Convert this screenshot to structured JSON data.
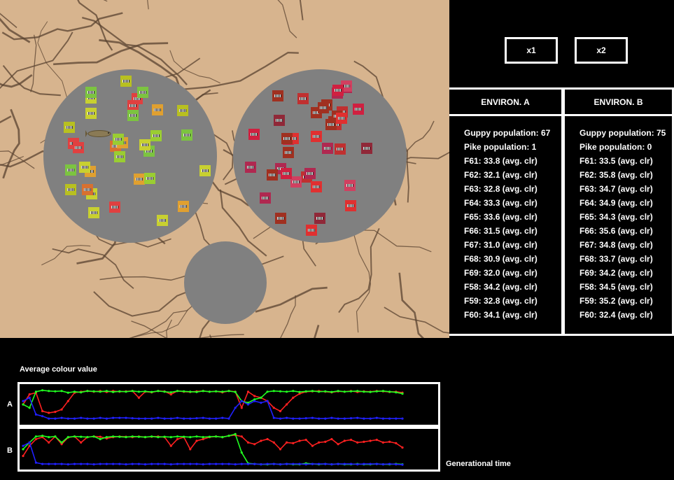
{
  "speed_buttons": [
    "x1",
    "x2"
  ],
  "environments": [
    {
      "header": "ENVIRON. A",
      "guppy_population": "Guppy population: 67",
      "pike_population": "Pike population: 1",
      "fish_stats": [
        "F61: 33.8 (avg. clr)",
        "F62: 32.1 (avg. clr)",
        "F63: 32.8 (avg. clr)",
        "F64: 33.3 (avg. clr)",
        "F65: 33.6 (avg. clr)",
        "F66: 31.5 (avg. clr)",
        "F67: 31.0 (avg. clr)",
        "F68: 30.9 (avg. clr)",
        "F69: 32.0 (avg. clr)",
        "F58: 34.2 (avg. clr)",
        "F59: 32.8 (avg. clr)",
        "F60: 34.1 (avg. clr)"
      ]
    },
    {
      "header": "ENVIRON. B",
      "guppy_population": "Guppy population: 75",
      "pike_population": "Pike population: 0",
      "fish_stats": [
        "F61: 33.5 (avg. clr)",
        "F62: 35.8 (avg. clr)",
        "F63: 34.7 (avg. clr)",
        "F64: 34.9 (avg. clr)",
        "F65: 34.3 (avg. clr)",
        "F66: 35.6 (avg. clr)",
        "F67: 34.8 (avg. clr)",
        "F68: 33.7 (avg. clr)",
        "F69: 34.2 (avg. clr)",
        "F58: 34.5 (avg. clr)",
        "F59: 35.2 (avg. clr)",
        "F60: 32.4 (avg. clr)"
      ]
    }
  ],
  "graph": {
    "title": "Average colour value",
    "xlabel": "Generational time",
    "plot_labels": [
      "A",
      "B"
    ]
  },
  "colors": {
    "background": "#000000",
    "pool": "#808080",
    "sand": "#d7b48e",
    "crack": "#5a4330",
    "red_series": "#ff2020",
    "green_series": "#20ff20",
    "blue_series": "#2020ff"
  },
  "chart_data": [
    {
      "type": "line",
      "panel": "A",
      "title": "Average colour value",
      "xlabel": "Generational time",
      "x_count": 60,
      "series": [
        {
          "color": "red",
          "values": [
            0.5,
            0.8,
            0.85,
            0.3,
            0.25,
            0.28,
            0.35,
            0.6,
            0.85,
            0.88,
            0.9,
            0.88,
            0.9,
            0.87,
            0.9,
            0.88,
            0.89,
            0.9,
            0.7,
            0.88,
            0.86,
            0.9,
            0.89,
            0.8,
            0.9,
            0.88,
            0.87,
            0.89,
            0.9,
            0.88,
            0.89,
            0.86,
            0.9,
            0.88,
            0.4,
            0.88,
            0.75,
            0.7,
            0.6,
            0.4,
            0.3,
            0.5,
            0.7,
            0.82,
            0.88,
            0.89,
            0.9,
            0.88,
            0.86,
            0.89,
            0.88,
            0.9,
            0.87,
            0.89,
            0.88,
            0.9,
            0.89,
            0.87,
            0.88,
            0.85
          ]
        },
        {
          "color": "green",
          "values": [
            0.5,
            0.4,
            0.88,
            0.92,
            0.9,
            0.89,
            0.9,
            0.85,
            0.88,
            0.86,
            0.9,
            0.89,
            0.88,
            0.9,
            0.87,
            0.89,
            0.88,
            0.9,
            0.88,
            0.89,
            0.87,
            0.9,
            0.88,
            0.86,
            0.9,
            0.89,
            0.88,
            0.87,
            0.9,
            0.88,
            0.89,
            0.88,
            0.9,
            0.87,
            0.6,
            0.55,
            0.65,
            0.7,
            0.88,
            0.9,
            0.89,
            0.88,
            0.9,
            0.87,
            0.89,
            0.9,
            0.88,
            0.89,
            0.87,
            0.9,
            0.88,
            0.89,
            0.9,
            0.88,
            0.87,
            0.89,
            0.9,
            0.88,
            0.86,
            0.82
          ]
        },
        {
          "color": "blue",
          "values": [
            0.6,
            0.7,
            0.2,
            0.15,
            0.08,
            0.08,
            0.1,
            0.08,
            0.08,
            0.1,
            0.08,
            0.08,
            0.1,
            0.08,
            0.1,
            0.1,
            0.1,
            0.09,
            0.08,
            0.08,
            0.08,
            0.1,
            0.08,
            0.08,
            0.1,
            0.08,
            0.08,
            0.09,
            0.1,
            0.08,
            0.08,
            0.1,
            0.08,
            0.4,
            0.6,
            0.5,
            0.6,
            0.55,
            0.6,
            0.1,
            0.08,
            0.1,
            0.08,
            0.08,
            0.09,
            0.1,
            0.08,
            0.08,
            0.1,
            0.08,
            0.08,
            0.09,
            0.1,
            0.08,
            0.08,
            0.1,
            0.08,
            0.08,
            0.08,
            0.08
          ]
        }
      ]
    },
    {
      "type": "line",
      "panel": "B",
      "xlabel": "Generational time",
      "x_count": 60,
      "series": [
        {
          "color": "red",
          "values": [
            0.3,
            0.6,
            0.8,
            0.86,
            0.7,
            0.88,
            0.65,
            0.85,
            0.88,
            0.7,
            0.86,
            0.88,
            0.87,
            0.82,
            0.86,
            0.88,
            0.87,
            0.86,
            0.88,
            0.86,
            0.87,
            0.88,
            0.86,
            0.6,
            0.8,
            0.86,
            0.5,
            0.75,
            0.8,
            0.86,
            0.88,
            0.86,
            0.9,
            0.92,
            0.88,
            0.7,
            0.65,
            0.75,
            0.8,
            0.7,
            0.5,
            0.7,
            0.68,
            0.75,
            0.78,
            0.6,
            0.7,
            0.72,
            0.8,
            0.65,
            0.75,
            0.78,
            0.7,
            0.72,
            0.75,
            0.78,
            0.7,
            0.72,
            0.68,
            0.55
          ]
        },
        {
          "color": "green",
          "values": [
            0.5,
            0.7,
            0.88,
            0.9,
            0.86,
            0.88,
            0.7,
            0.86,
            0.88,
            0.87,
            0.86,
            0.88,
            0.8,
            0.86,
            0.88,
            0.87,
            0.86,
            0.88,
            0.87,
            0.86,
            0.88,
            0.86,
            0.87,
            0.86,
            0.88,
            0.87,
            0.86,
            0.88,
            0.86,
            0.87,
            0.88,
            0.86,
            0.9,
            0.95,
            0.4,
            0.08,
            0.06,
            0.05,
            0.05,
            0.06,
            0.05,
            0.06,
            0.05,
            0.05,
            0.08,
            0.06,
            0.05,
            0.06,
            0.05,
            0.06,
            0.05,
            0.05,
            0.06,
            0.05,
            0.05,
            0.06,
            0.05,
            0.05,
            0.06,
            0.05
          ]
        },
        {
          "color": "blue",
          "values": [
            0.6,
            0.7,
            0.1,
            0.06,
            0.06,
            0.06,
            0.06,
            0.05,
            0.06,
            0.06,
            0.06,
            0.05,
            0.06,
            0.06,
            0.06,
            0.06,
            0.05,
            0.06,
            0.06,
            0.05,
            0.06,
            0.06,
            0.06,
            0.05,
            0.06,
            0.06,
            0.06,
            0.06,
            0.05,
            0.06,
            0.06,
            0.06,
            0.06,
            0.05,
            0.06,
            0.06,
            0.06,
            0.05,
            0.06,
            0.06,
            0.05,
            0.06,
            0.06,
            0.06,
            0.05,
            0.06,
            0.06,
            0.06,
            0.05,
            0.06,
            0.06,
            0.06,
            0.05,
            0.06,
            0.06,
            0.06,
            0.05,
            0.06,
            0.05,
            0.04
          ]
        }
      ]
    }
  ]
}
